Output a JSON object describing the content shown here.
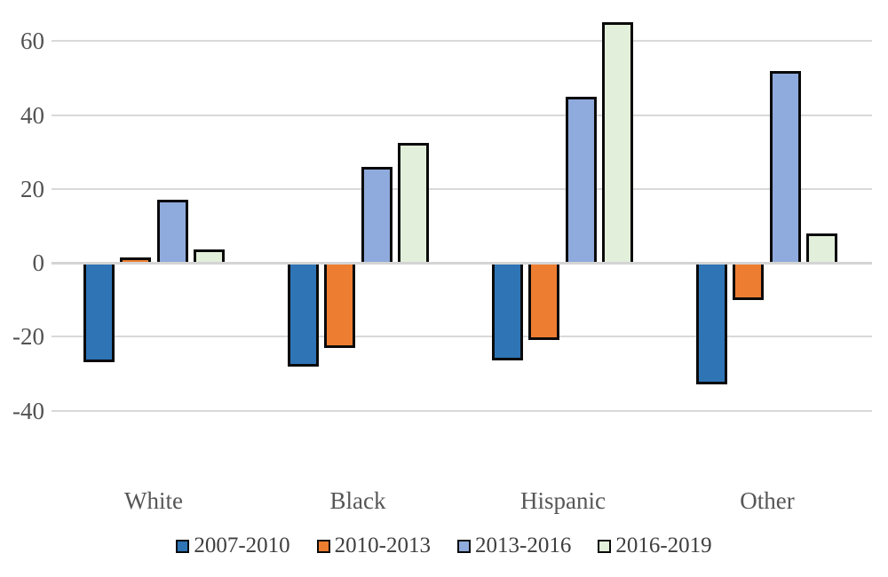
{
  "chart_data": {
    "type": "bar",
    "title": "",
    "xlabel": "",
    "ylabel": "",
    "categories": [
      "White",
      "Black",
      "Hispanic",
      "Other"
    ],
    "series": [
      {
        "name": "2007-2010",
        "color": "#2F74B5",
        "dotted": false,
        "values": [
          -27,
          -28,
          -26.5,
          -33
        ]
      },
      {
        "name": "2010-2013",
        "color": "#ED7D31",
        "dotted": false,
        "values": [
          1.5,
          -23,
          -21,
          -10
        ]
      },
      {
        "name": "2013-2016",
        "color": "#8FAADC",
        "dotted": true,
        "values": [
          17,
          26,
          45,
          52
        ]
      },
      {
        "name": "2016-2019",
        "color": "#E2EFDA",
        "dotted": true,
        "values": [
          3.5,
          32.5,
          65,
          8
        ]
      }
    ],
    "yticks": [
      60,
      40,
      20,
      0,
      -20,
      -40
    ],
    "ylim": [
      -50,
      70
    ],
    "grid": true,
    "gridline_color": "#D9D9D9",
    "bar_border_color": "#0A0A0A",
    "legend_position": "bottom"
  }
}
